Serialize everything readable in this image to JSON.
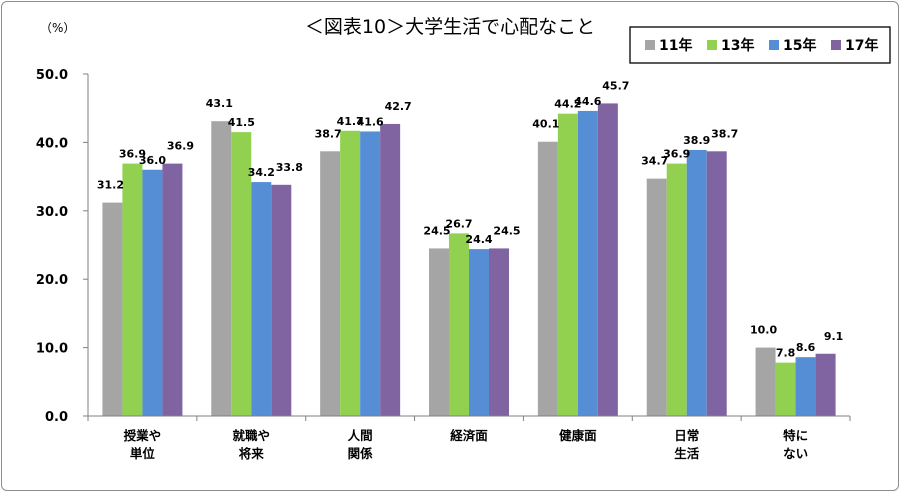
{
  "chart_data": {
    "type": "bar",
    "title": "＜図表10＞大学生活で心配なこと",
    "unit": "（%）",
    "categories": [
      [
        "授業や",
        "単位"
      ],
      [
        "就職や",
        "将来"
      ],
      [
        "人間",
        "関係"
      ],
      [
        "経済面"
      ],
      [
        "健康面"
      ],
      [
        "日常",
        "生活"
      ],
      [
        "特に",
        "ない"
      ]
    ],
    "series": [
      {
        "name": "11年",
        "color": "#a5a5a5",
        "values": [
          31.2,
          43.1,
          38.7,
          24.5,
          40.1,
          34.7,
          10.0
        ]
      },
      {
        "name": "13年",
        "color": "#92d050",
        "values": [
          36.9,
          41.5,
          41.7,
          26.7,
          44.2,
          36.9,
          7.8
        ]
      },
      {
        "name": "15年",
        "color": "#558ed5",
        "values": [
          36.0,
          34.2,
          41.6,
          24.4,
          44.6,
          38.9,
          8.6
        ]
      },
      {
        "name": "17年",
        "color": "#8064a2",
        "values": [
          36.9,
          33.8,
          42.7,
          24.5,
          45.7,
          38.7,
          9.1
        ]
      }
    ],
    "ylim": [
      0,
      50
    ],
    "yticks": [
      "0.0",
      "10.0",
      "20.0",
      "30.0",
      "40.0",
      "50.0"
    ],
    "legend_position": "top-right",
    "grid": false
  }
}
